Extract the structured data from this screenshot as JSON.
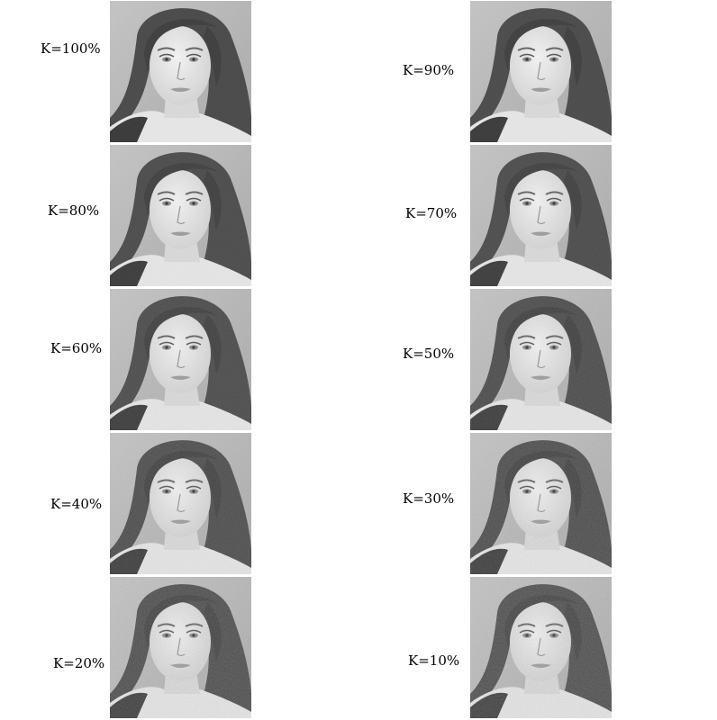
{
  "panels": [
    {
      "label": "K=100%",
      "k": 100
    },
    {
      "label": "K=90%",
      "k": 90
    },
    {
      "label": "K=80%",
      "k": 80
    },
    {
      "label": "K=70%",
      "k": 70
    },
    {
      "label": "K=60%",
      "k": 60
    },
    {
      "label": "K=50%",
      "k": 50
    },
    {
      "label": "K=40%",
      "k": 40
    },
    {
      "label": "K=30%",
      "k": 30
    },
    {
      "label": "K=20%",
      "k": 20
    },
    {
      "label": "K=10%",
      "k": 10
    }
  ]
}
